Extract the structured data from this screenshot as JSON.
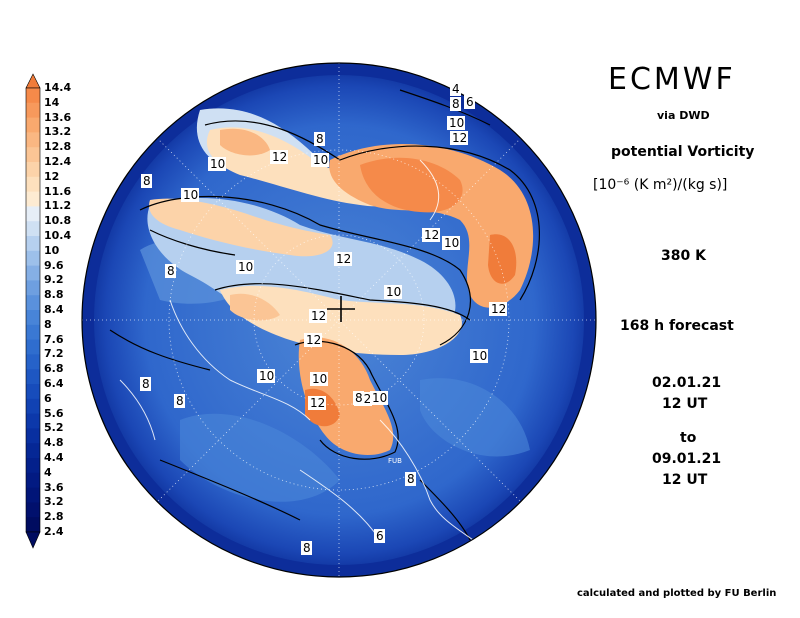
{
  "header": {
    "title": "ECMWF",
    "via": "via DWD",
    "parameter": "potential Vorticity",
    "units": "[10⁻⁶ (K m²)/(kg s)]",
    "level": "380 K",
    "forecast": "168 h forecast",
    "valid_from_date": "02.01.21",
    "valid_from_time": "12 UT",
    "to_word": "to",
    "valid_to_date": "09.01.21",
    "valid_to_time": "12 UT"
  },
  "credit": "calculated and plotted by FU Berlin",
  "legend": {
    "labels": [
      "14.4",
      "14",
      "13.6",
      "13.2",
      "12.8",
      "12.4",
      "12",
      "11.6",
      "11.2",
      "10.8",
      "10.4",
      "10",
      "9.6",
      "9.2",
      "8.8",
      "8.4",
      "8",
      "7.6",
      "7.2",
      "6.8",
      "6.4",
      "6",
      "5.6",
      "5.2",
      "4.8",
      "4.4",
      "4",
      "3.6",
      "3.2",
      "2.8",
      "2.4"
    ],
    "colors": [
      "#f07c3a",
      "#f58a4a",
      "#f7995c",
      "#f9a96e",
      "#fab782",
      "#fbc595",
      "#fcd3a9",
      "#fde0bd",
      "#fdebd2",
      "#e6eef7",
      "#cfe0f3",
      "#b6d0ef",
      "#9dc0ea",
      "#85afe5",
      "#6e9fe0",
      "#5a91dc",
      "#4884d8",
      "#3a78d3",
      "#2f6dce",
      "#2662c9",
      "#1e57c2",
      "#174cbb",
      "#1142b3",
      "#0c38aa",
      "#082fa0",
      "#052795",
      "#03208b",
      "#021a82",
      "#011578",
      "#01106d",
      "#000c60"
    ]
  },
  "contour_labels": [
    "4",
    "8",
    "6",
    "10",
    "12",
    "8",
    "10",
    "12",
    "10",
    "8",
    "10",
    "12",
    "10",
    "8",
    "10",
    "12",
    "10",
    "12",
    "12",
    "12",
    "10",
    "12",
    "10",
    "10",
    "12",
    "8",
    "8",
    "8",
    "8",
    "6",
    "8",
    "10"
  ],
  "annotations": {
    "pole_marker_label": "FUB"
  }
}
